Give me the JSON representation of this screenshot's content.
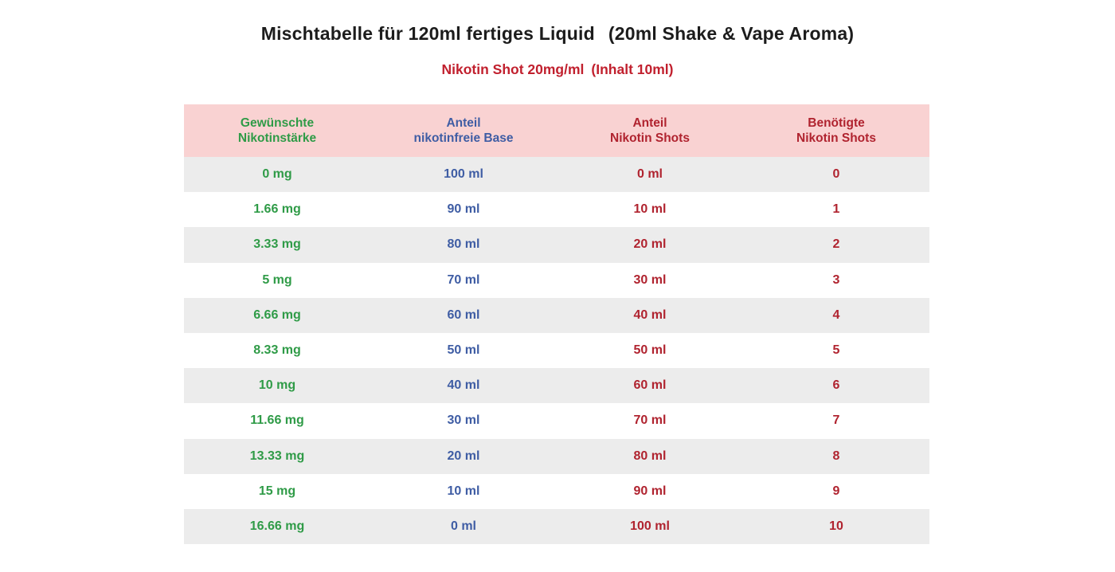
{
  "page": {
    "title_main": "Mischtabelle für 120ml fertiges Liquid",
    "title_note": "(20ml Shake & Vape Aroma)",
    "subtitle_main": "Nikotin Shot 20mg/ml",
    "subtitle_note": "(Inhalt 10ml)"
  },
  "colors": {
    "header_background": "#f9d2d2",
    "row_stripe": "#ececec",
    "column_nicotine_strength": "#2f9b47",
    "column_base": "#3f5da4",
    "column_shots_ml": "#b0232f",
    "column_shots_count": "#b0232f",
    "subtitle": "#c1202e",
    "title": "#1c1c1c"
  },
  "table": {
    "columns": [
      {
        "line1": "Gewünschte",
        "line2": "Nikotinstärke"
      },
      {
        "line1": "Anteil",
        "line2": "nikotinfreie Base"
      },
      {
        "line1": "Anteil",
        "line2": "Nikotin Shots"
      },
      {
        "line1": "Benötigte",
        "line2": "Nikotin Shots"
      }
    ]
  },
  "chart_data": {
    "type": "table",
    "title": "Mischtabelle für 120ml fertiges Liquid (20ml Shake & Vape Aroma)",
    "subtitle": "Nikotin Shot 20mg/ml (Inhalt 10ml)",
    "columns": [
      "Gewünschte Nikotinstärke",
      "Anteil nikotinfreie Base",
      "Anteil Nikotin Shots",
      "Benötigte Nikotin Shots"
    ],
    "rows": [
      [
        "0 mg",
        "100 ml",
        "0 ml",
        "0"
      ],
      [
        "1.66 mg",
        "90 ml",
        "10 ml",
        "1"
      ],
      [
        "3.33 mg",
        "80 ml",
        "20 ml",
        "2"
      ],
      [
        "5 mg",
        "70 ml",
        "30 ml",
        "3"
      ],
      [
        "6.66 mg",
        "60 ml",
        "40 ml",
        "4"
      ],
      [
        "8.33 mg",
        "50 ml",
        "50 ml",
        "5"
      ],
      [
        "10 mg",
        "40 ml",
        "60 ml",
        "6"
      ],
      [
        "11.66 mg",
        "30 ml",
        "70 ml",
        "7"
      ],
      [
        "13.33 mg",
        "20 ml",
        "80 ml",
        "8"
      ],
      [
        "15 mg",
        "10 ml",
        "90 ml",
        "9"
      ],
      [
        "16.66 mg",
        "0 ml",
        "100 ml",
        "10"
      ]
    ]
  }
}
